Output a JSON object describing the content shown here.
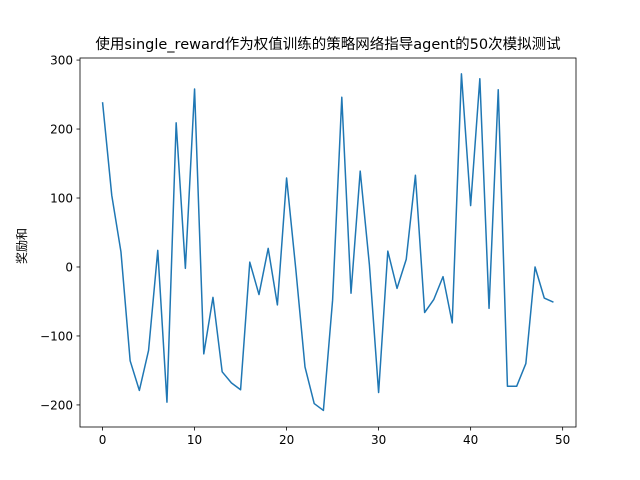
{
  "chart_data": {
    "type": "line",
    "title": "使用single_reward作为权值训练的策略网络指导agent的50次模拟测试",
    "xlabel": "",
    "ylabel": "奖励和",
    "xlim": [
      -2.45,
      51.45
    ],
    "ylim": [
      -232,
      303
    ],
    "xticks": [
      0,
      10,
      20,
      30,
      40,
      50
    ],
    "yticks": [
      -200,
      -100,
      0,
      100,
      200,
      300
    ],
    "ytick_labels": [
      "−200",
      "−100",
      "0",
      "100",
      "200",
      "300"
    ],
    "grid": false,
    "legend": "none",
    "line_color": "#1f77b4",
    "series": [
      {
        "x": [
          0,
          1,
          2,
          3,
          4,
          5,
          6,
          7,
          8,
          9,
          10,
          11,
          12,
          13,
          14,
          15,
          16,
          17,
          18,
          19,
          20,
          21,
          22,
          23,
          24,
          25,
          26,
          27,
          28,
          29,
          30,
          31,
          32,
          33,
          34,
          35,
          36,
          37,
          38,
          39,
          40,
          41,
          42,
          43,
          44,
          45,
          46,
          47,
          48,
          49
        ],
        "values": [
          239,
          104,
          22,
          -136,
          -179,
          -121,
          24,
          -196,
          209,
          -2,
          258,
          -126,
          -44,
          -152,
          -168,
          -178,
          7,
          -40,
          27,
          -55,
          129,
          -3,
          -145,
          -198,
          -208,
          -48,
          246,
          -38,
          139,
          3,
          -182,
          23,
          -31,
          11,
          133,
          -66,
          -47,
          -14,
          -81,
          280,
          89,
          273,
          -60,
          257,
          -173,
          -173,
          -140,
          0,
          -45,
          -51
        ]
      }
    ]
  }
}
